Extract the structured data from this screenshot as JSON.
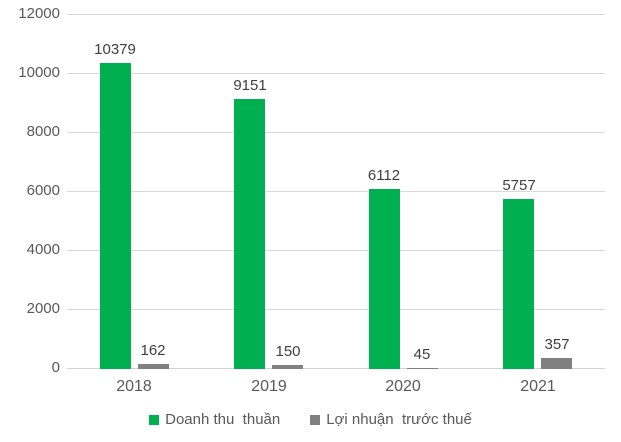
{
  "colors": {
    "series_revenue": "#00B050",
    "series_profit": "#808080",
    "gridline": "#D9D9D9",
    "axis_line": "#D3D3D3",
    "tick_label": "#595959",
    "data_label": "#404040",
    "legend_text": "#595959",
    "background": "#FFFFFF"
  },
  "chart_data": {
    "type": "bar",
    "title": "",
    "xlabel": "",
    "ylabel": "",
    "categories": [
      "2018",
      "2019",
      "2020",
      "2021"
    ],
    "series": [
      {
        "name": "Doanh thu  thuần",
        "values": [
          10379,
          9151,
          6112,
          5757
        ],
        "color": "#00B050",
        "data_labels": [
          10379,
          9151,
          6112,
          5757
        ]
      },
      {
        "name": "Lợi nhuận  trước thuế",
        "values": [
          162,
          150,
          45,
          357
        ],
        "color": "#808080",
        "data_labels": [
          162,
          150,
          45,
          357
        ]
      }
    ],
    "ylim": [
      0,
      12000
    ],
    "yticks": [
      0,
      2000,
      4000,
      6000,
      8000,
      10000,
      12000
    ],
    "ytick_labels": [
      "0",
      "2000",
      "4000",
      "6000",
      "8000",
      "10000",
      "12000"
    ],
    "grid": true,
    "data_labels": true,
    "legend_position": "bottom"
  }
}
